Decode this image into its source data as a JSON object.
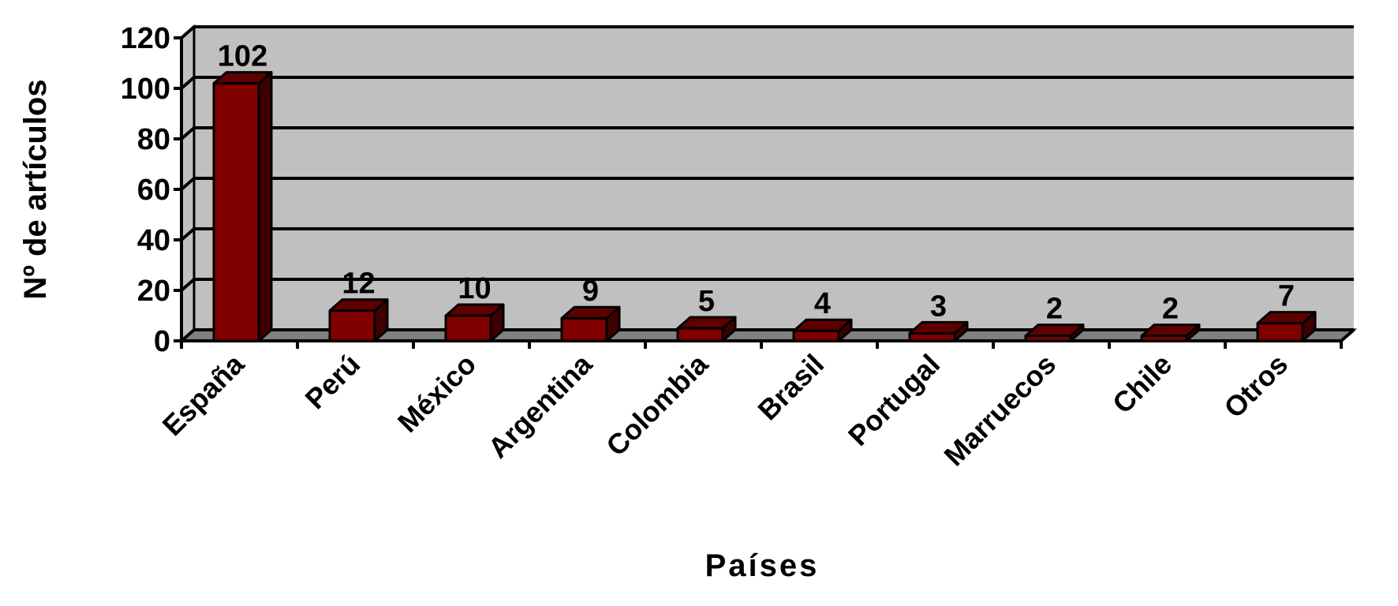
{
  "chart_data": {
    "type": "bar",
    "style": "3d-column",
    "title": "",
    "xlabel": "Países",
    "ylabel": "Nº de artículos",
    "categories": [
      "España",
      "Perú",
      "México",
      "Argentina",
      "Colombia",
      "Brasil",
      "Portugal",
      "Marruecos",
      "Chile",
      "Otros"
    ],
    "values": [
      102,
      12,
      10,
      9,
      5,
      4,
      3,
      2,
      2,
      7
    ],
    "data_labels": [
      "102",
      "12",
      "10",
      "9",
      "5",
      "4",
      "3",
      "2",
      "2",
      "7"
    ],
    "ylim": [
      0,
      120
    ],
    "yticks": [
      0,
      20,
      40,
      60,
      80,
      100,
      120
    ],
    "ytick_labels": [
      "0",
      "20",
      "40",
      "60",
      "80",
      "100",
      "120"
    ],
    "grid": true,
    "legend": "none",
    "colors": {
      "bar_front": "#800000",
      "bar_top": "#5e0000",
      "bar_side": "#3f0000",
      "wall": "#c0c0c0",
      "floor": "#808080",
      "grid": "#000000"
    }
  }
}
